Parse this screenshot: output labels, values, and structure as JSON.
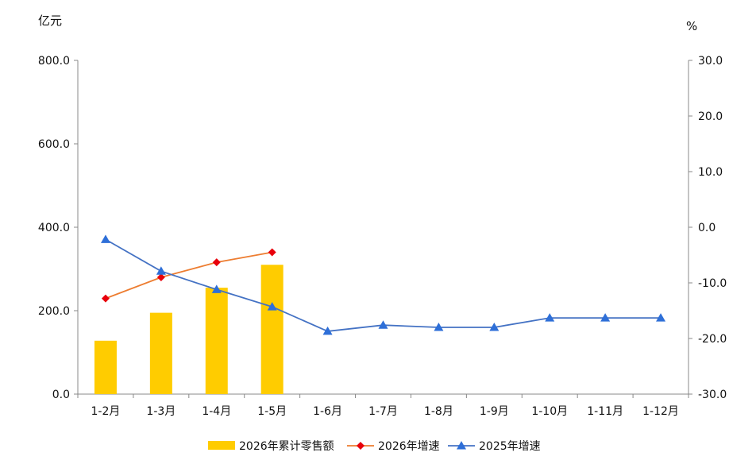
{
  "chart_data": {
    "type": "bar",
    "categories": [
      "1-2月",
      "1-3月",
      "1-4月",
      "1-5月",
      "1-6月",
      "1-7月",
      "1-8月",
      "1-9月",
      "1-10月",
      "1-11月",
      "1-12月"
    ],
    "left_axis": {
      "unit": "亿元",
      "ylim": [
        0,
        800
      ],
      "ticks": [
        "0.0",
        "200.0",
        "400.0",
        "600.0",
        "800.0"
      ]
    },
    "right_axis": {
      "unit": "%",
      "ylim": [
        -30,
        30
      ],
      "ticks": [
        "-30.0",
        "-20.0",
        "-10.0",
        "0.0",
        "10.0",
        "20.0",
        "30.0"
      ]
    },
    "series": [
      {
        "name": "2026年累计零售额",
        "kind": "bar",
        "axis": "left",
        "color": "#FFCC00",
        "values": [
          128,
          195,
          255,
          310,
          null,
          null,
          null,
          null,
          null,
          null,
          null
        ]
      },
      {
        "name": "2026年增速",
        "kind": "line",
        "marker": "diamond",
        "axis": "right",
        "line_color": "#ED7D31",
        "marker_color": "#E8000B",
        "values": [
          -12.8,
          -9.0,
          -6.3,
          -4.5,
          null,
          null,
          null,
          null,
          null,
          null,
          null
        ]
      },
      {
        "name": "2025年增速",
        "kind": "line",
        "marker": "triangle",
        "axis": "right",
        "line_color": "#4472C4",
        "marker_color": "#2E6FD8",
        "values": [
          -2.2,
          -7.9,
          -11.2,
          -14.3,
          -18.7,
          -17.6,
          -18.0,
          -18.0,
          -16.3,
          -16.3,
          -16.3
        ]
      }
    ],
    "grid": false,
    "legend_position": "bottom"
  }
}
